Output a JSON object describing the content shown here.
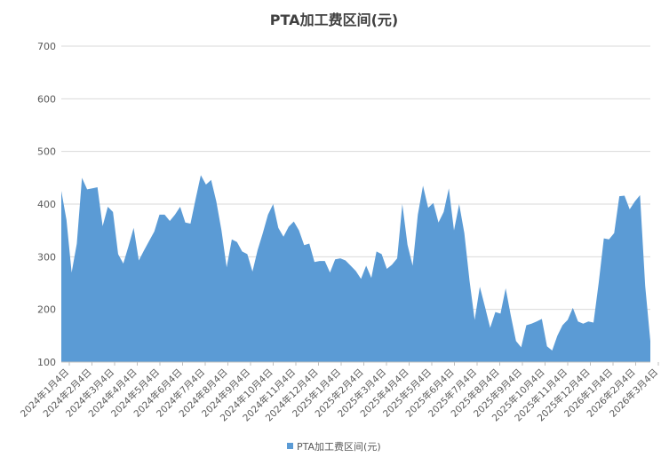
{
  "chart_data": {
    "type": "area",
    "title": "PTA加工费区间(元)",
    "xlabel": "",
    "ylabel": "",
    "ylim": [
      100,
      700
    ],
    "yticks": [
      100,
      200,
      300,
      400,
      500,
      600,
      700
    ],
    "grid": true,
    "legend_position": "bottom",
    "color": "#5b9bd5",
    "xtick_labels": [
      "2024年1月4日",
      "2024年2月4日",
      "2024年3月4日",
      "2024年4月4日",
      "2024年5月4日",
      "2024年6月4日",
      "2024年7月4日",
      "2024年8月4日",
      "2024年9月4日",
      "2024年10月4日",
      "2024年11月4日",
      "2024年12月4日",
      "2025年1月4日",
      "2025年2月4日",
      "2025年3月4日",
      "2025年4月4日",
      "2025年5月4日",
      "2025年6月4日",
      "2025年7月4日",
      "2025年8月4日",
      "2025年9月4日",
      "2025年10月4日",
      "2025年11月4日",
      "2025年12月4日",
      "2026年1月4日",
      "2026年2月4日",
      "2026年3月4日"
    ],
    "series": [
      {
        "name": "PTA加工费区间(元)",
        "values": [
          425,
          370,
          270,
          325,
          450,
          428,
          430,
          432,
          358,
          395,
          385,
          305,
          287,
          320,
          355,
          293,
          312,
          330,
          348,
          380,
          380,
          368,
          380,
          395,
          365,
          363,
          410,
          455,
          437,
          446,
          405,
          350,
          280,
          333,
          328,
          310,
          305,
          272,
          313,
          345,
          380,
          400,
          355,
          338,
          357,
          367,
          350,
          322,
          325,
          290,
          292,
          292,
          270,
          295,
          297,
          293,
          283,
          273,
          258,
          283,
          260,
          310,
          305,
          277,
          285,
          297,
          400,
          323,
          283,
          380,
          435,
          393,
          402,
          365,
          385,
          430,
          350,
          400,
          345,
          255,
          180,
          243,
          205,
          165,
          195,
          192,
          240,
          188,
          140,
          128,
          170,
          173,
          177,
          182,
          130,
          122,
          150,
          170,
          180,
          203,
          177,
          173,
          177,
          175,
          250,
          335,
          333,
          345,
          415,
          416,
          390,
          405,
          417,
          245,
          140
        ]
      }
    ]
  }
}
